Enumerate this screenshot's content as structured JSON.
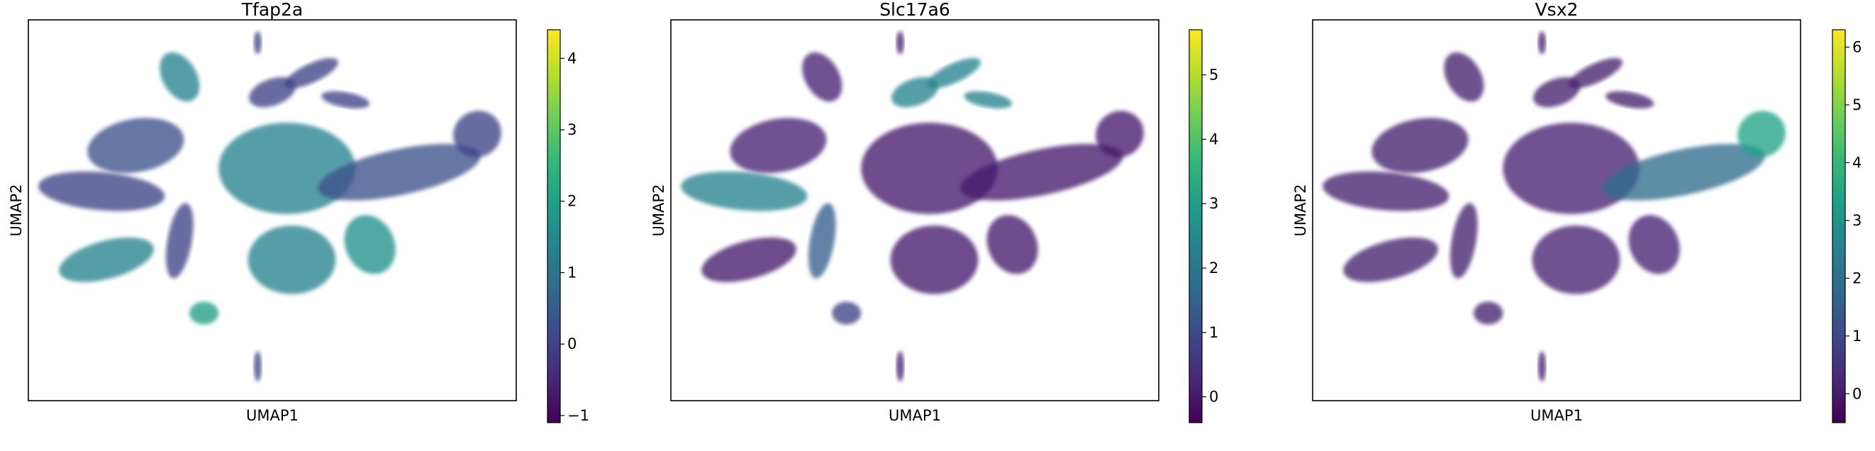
{
  "colormap": [
    "#440154",
    "#482878",
    "#3e4989",
    "#31688e",
    "#26828e",
    "#1f9e89",
    "#35b779",
    "#6ece58",
    "#b5de2b",
    "#fde725"
  ],
  "chart_data": [
    {
      "type": "scatter",
      "title": "Tfap2a",
      "xlabel": "UMAP1",
      "ylabel": "UMAP2",
      "colorbar": {
        "vmin": -1.1,
        "vmax": 4.4,
        "ticks": [
          -1,
          0,
          1,
          2,
          3,
          4
        ],
        "tick_labels": [
          "−1",
          "0",
          "1",
          "2",
          "3",
          "4"
        ]
      },
      "axis_ticks_shown": false,
      "expression_pattern": "mid-high (about 1-2) in central upper region, left lower lobe, lower-right lobe and small bottom cluster; low elsewhere"
    },
    {
      "type": "scatter",
      "title": "Slc17a6",
      "xlabel": "UMAP1",
      "ylabel": "UMAP2",
      "colorbar": {
        "vmin": -0.4,
        "vmax": 5.7,
        "ticks": [
          0,
          1,
          2,
          3,
          4,
          5
        ],
        "tick_labels": [
          "0",
          "1",
          "2",
          "3",
          "4",
          "5"
        ]
      },
      "axis_ticks_shown": false,
      "expression_pattern": "about 2-3 in upper-right branch clusters and left finger-like clusters; near 0 in central mass and right arm"
    },
    {
      "type": "scatter",
      "title": "Vsx2",
      "xlabel": "UMAP1",
      "ylabel": "UMAP2",
      "colorbar": {
        "vmin": -0.5,
        "vmax": 6.3,
        "ticks": [
          0,
          1,
          2,
          3,
          4,
          5,
          6
        ],
        "tick_labels": [
          "0",
          "1",
          "2",
          "3",
          "4",
          "5",
          "6"
        ]
      },
      "axis_ticks_shown": false,
      "expression_pattern": "gradient rising to about 3-4 along the right arm tip; near 0 elsewhere"
    }
  ]
}
